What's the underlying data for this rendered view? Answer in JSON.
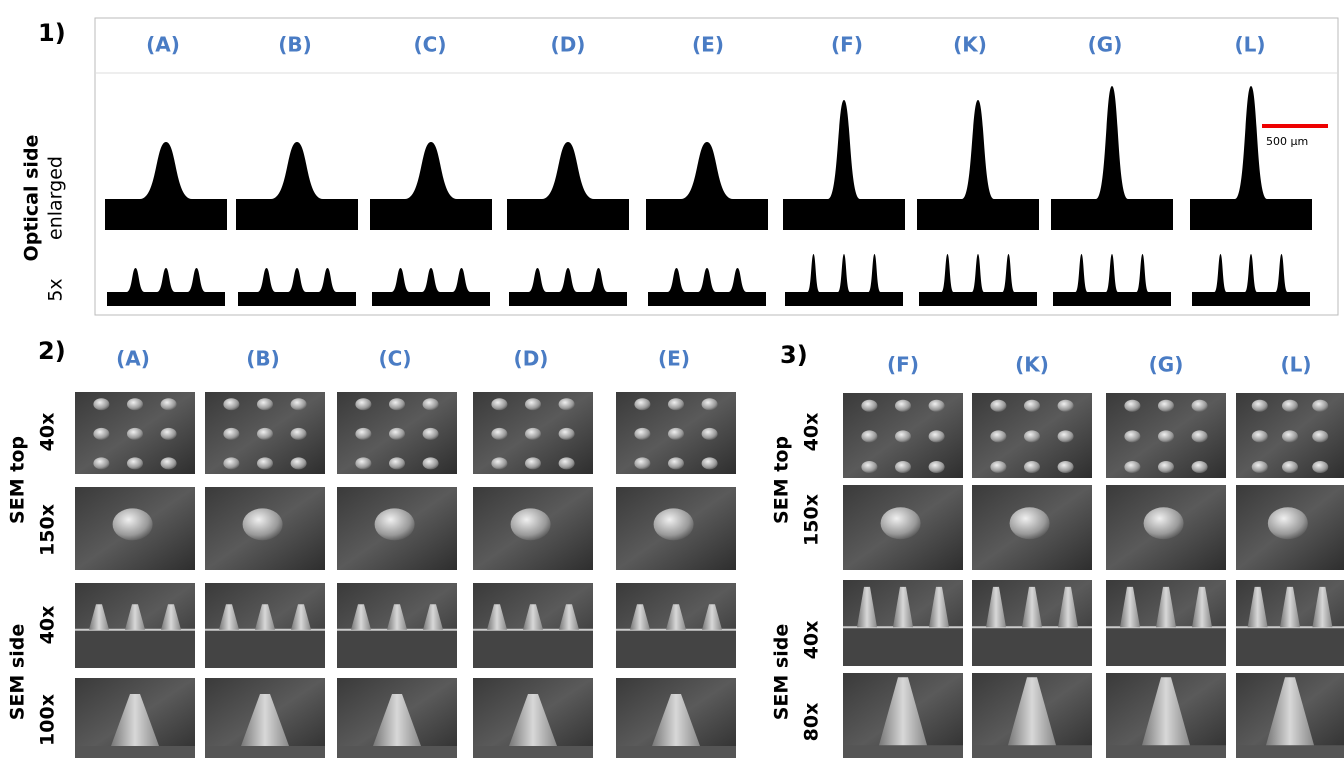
{
  "figure": {
    "panel_1": {
      "label": "1)",
      "columns": [
        "(A)",
        "(B)",
        "(C)",
        "(D)",
        "(E)",
        "(F)",
        "(K)",
        "(G)",
        "(L)"
      ],
      "row_labels": {
        "optical": [
          "Optical side",
          "enlarged"
        ],
        "low_mag": "5x"
      },
      "scale_bar": "500 µm"
    },
    "panel_2": {
      "label": "2)",
      "columns": [
        "(A)",
        "(B)",
        "(C)",
        "(D)",
        "(E)"
      ],
      "row_labels": {
        "sem_top": "SEM top",
        "top_low": "40x",
        "top_high": "150x",
        "sem_side": "SEM side",
        "side_low": "40x",
        "side_high": "100x"
      }
    },
    "panel_3": {
      "label": "3)",
      "columns": [
        "(F)",
        "(K)",
        "(G)",
        "(L)"
      ],
      "row_labels": {
        "sem_top": "SEM top",
        "top_low": "40x",
        "top_high": "150x",
        "sem_side": "SEM side",
        "side_low": "40x",
        "side_high": "80x"
      }
    }
  }
}
